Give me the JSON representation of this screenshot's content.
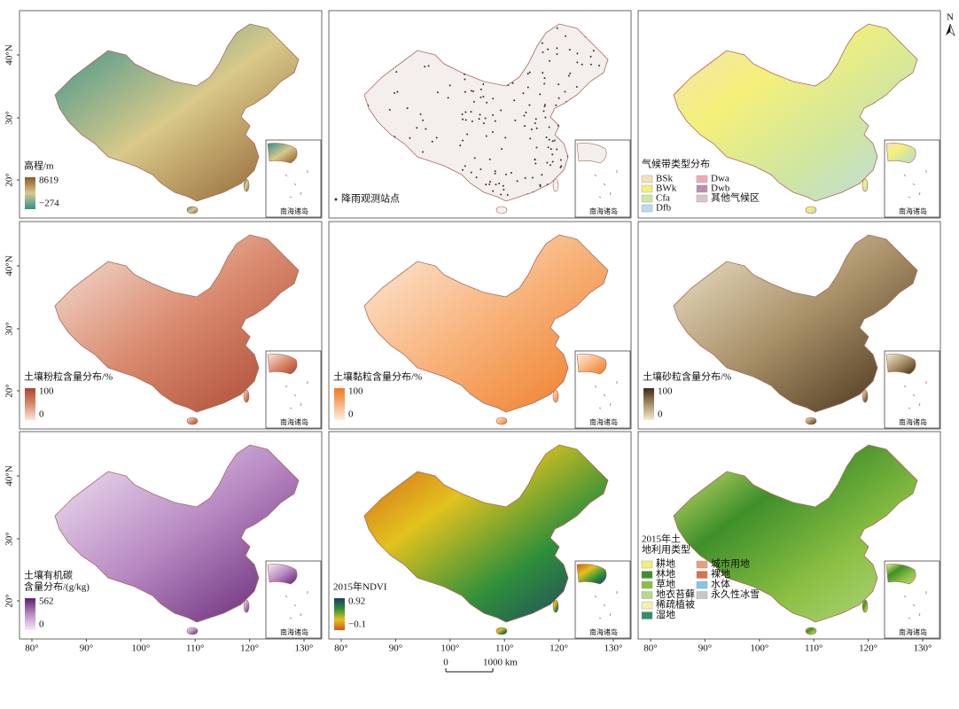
{
  "north": "N",
  "lat_labels": [
    "40°N",
    "30°",
    "20°"
  ],
  "lon_labels": [
    "80°",
    "90°",
    "100°",
    "110°",
    "120°",
    "130°"
  ],
  "inset_label": "南海诸岛",
  "scale_bar": {
    "start": "0",
    "end": "1000 km"
  },
  "panels": [
    {
      "kind": "continuous",
      "title": [
        "高程/m"
      ],
      "max": "8619",
      "min": "−274",
      "colors": [
        "#2f8f8f",
        "#d9c98a",
        "#8b5a2b"
      ]
    },
    {
      "kind": "points",
      "title": [
        "降雨观测站点"
      ],
      "colors": [
        "#f4efed",
        "#333333"
      ]
    },
    {
      "kind": "classes",
      "title": [
        "气候带类型分布"
      ],
      "items": [
        {
          "label": "BSk",
          "color": "#f1e2bd"
        },
        {
          "label": "BWk",
          "color": "#f5f07a"
        },
        {
          "label": "Cfa",
          "color": "#cfe6a0"
        },
        {
          "label": "Dfb",
          "color": "#bcd9ef"
        },
        {
          "label": "Dwa",
          "color": "#f3a7b5"
        },
        {
          "label": "Dwb",
          "color": "#b88fb0"
        },
        {
          "label": "其他气候区",
          "color": "#d8c6c6"
        }
      ]
    },
    {
      "kind": "continuous",
      "title": [
        "土壤粉粒含量分布/%"
      ],
      "max": "100",
      "min": "0",
      "colors": [
        "#f7e6dc",
        "#d98a6e",
        "#a8452e"
      ]
    },
    {
      "kind": "continuous",
      "title": [
        "土壤黏粒含量分布/%"
      ],
      "max": "100",
      "min": "0",
      "colors": [
        "#fdeee0",
        "#f8b27a",
        "#ee7a22"
      ]
    },
    {
      "kind": "continuous",
      "title": [
        "土壤砂粒含量分布/%"
      ],
      "max": "100",
      "min": "0",
      "colors": [
        "#f3ead2",
        "#a89068",
        "#3f2a14"
      ]
    },
    {
      "kind": "continuous",
      "title": [
        "土壤有机碳",
        "含量分布/(g/kg)"
      ],
      "max": "562",
      "min": "0",
      "colors": [
        "#f5eaf5",
        "#b98bc4",
        "#5e1f6e"
      ]
    },
    {
      "kind": "continuous",
      "title": [
        "2015年NDVI"
      ],
      "max": "0.92",
      "min": "−0.1",
      "colors": [
        "#d2571c",
        "#e3c21e",
        "#2f8f3a",
        "#1c3a6a"
      ]
    },
    {
      "kind": "classes",
      "title": [
        "2015年土",
        "地利用类型"
      ],
      "items": [
        {
          "label": "耕地",
          "color": "#f0f07a"
        },
        {
          "label": "林地",
          "color": "#3f8f2a"
        },
        {
          "label": "草地",
          "color": "#8cc043"
        },
        {
          "label": "地衣苔藓",
          "color": "#b5d98a"
        },
        {
          "label": "稀疏植被",
          "color": "#f5f0b0"
        },
        {
          "label": "湿地",
          "color": "#2f8f6a"
        },
        {
          "label": "城市用地",
          "color": "#e8a07a"
        },
        {
          "label": "裸地",
          "color": "#e0704a"
        },
        {
          "label": "水体",
          "color": "#7fc8e8"
        },
        {
          "label": "永久性冰雪",
          "color": "#c8c8c8"
        }
      ]
    }
  ]
}
